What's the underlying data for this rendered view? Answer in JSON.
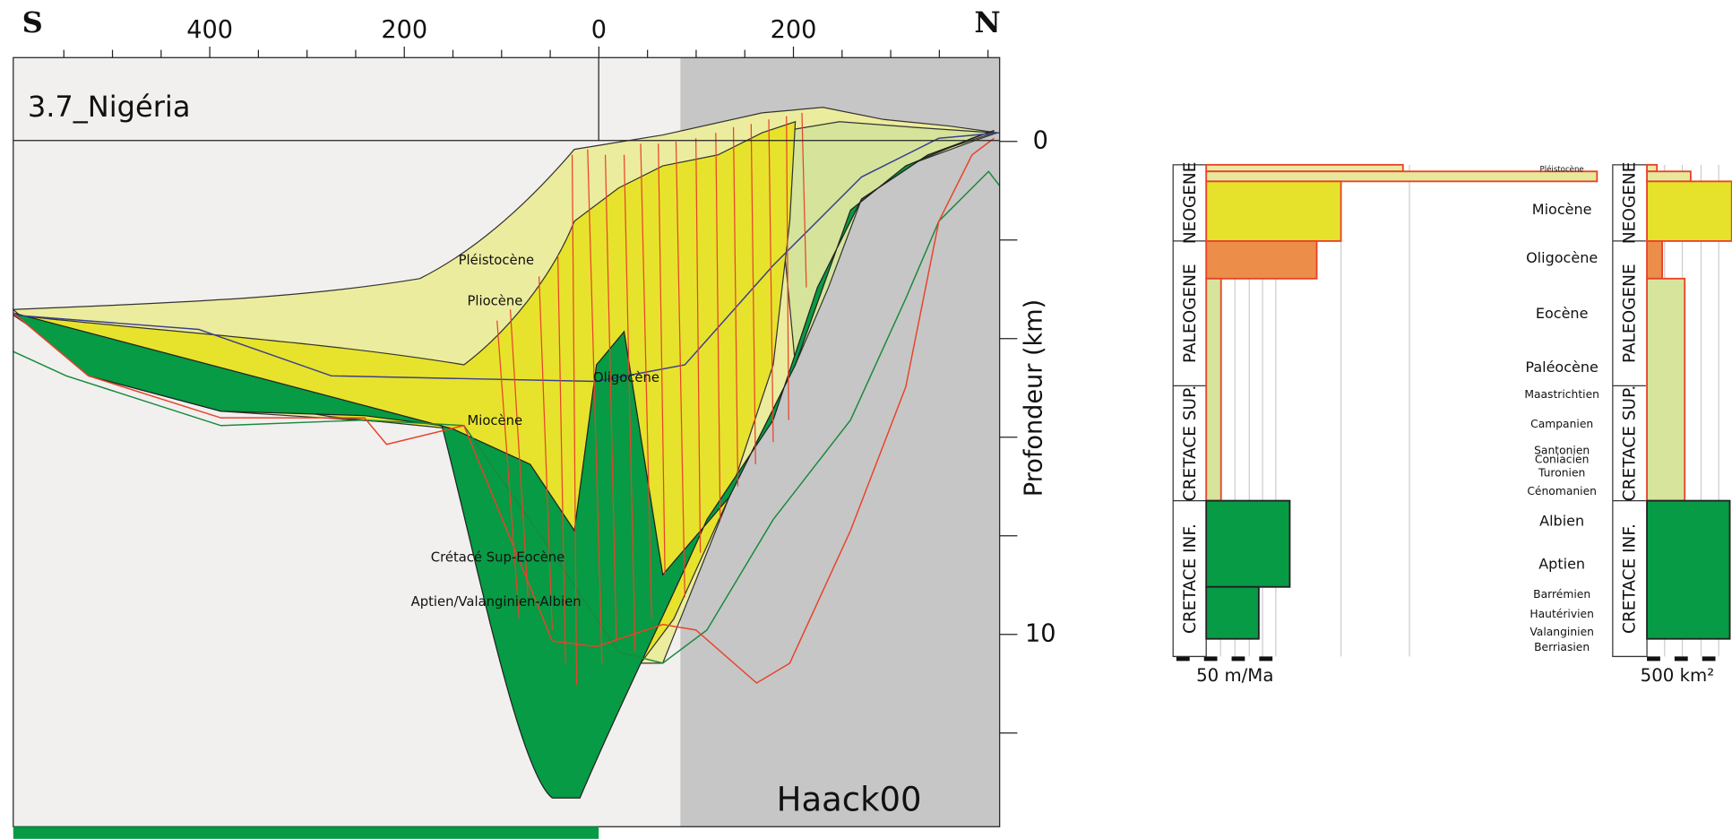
{
  "section": {
    "south": "S",
    "north": "N",
    "title": "3.7_Nigéria",
    "source": "Haack00",
    "y_label": "Profondeur (km)",
    "xlim": [
      -602,
      412
    ],
    "xticks": [
      {
        "value": -400,
        "label": "400"
      },
      {
        "value": -200,
        "label": "200"
      },
      0,
      200
    ],
    "x_minor_ticks": [
      -550,
      -500,
      -450,
      -350,
      -300,
      -250,
      -150,
      -100,
      -50,
      50,
      100,
      150,
      250,
      300,
      350,
      400
    ],
    "ylim": [
      -1.7,
      13.9
    ],
    "yticks": [
      0,
      10
    ],
    "y_minor_ticks": [
      2,
      4,
      6,
      8,
      12
    ],
    "labels": [
      "Pléistocène",
      "Pliocène",
      "Oligocène",
      "Miocène",
      "Crétacé Sup-Eocène",
      "Aptien/Valanginien-Albien"
    ]
  },
  "columns": {
    "periods": [
      "NEOGENE",
      "PALEOGENE",
      "CRETACE SUP.",
      "CRETACE INF."
    ],
    "stages": [
      "Pléistocène",
      "Miocène",
      "Oligocène",
      "Eocène",
      "Paléocène",
      "Maastrichtien",
      "Campanien",
      "Santonien",
      "Coniacien",
      "Turonien",
      "Cénomanien",
      "Albien",
      "Aptien",
      "Barrémien",
      "Hautérivien",
      "Valanginien",
      "Berriasien"
    ],
    "colors": [
      "#eaeaa2",
      "#e8e89c",
      "#e6e22c",
      "#ec8e4a",
      "#d6e49c",
      "#069b44",
      "#069b44"
    ],
    "rate": {
      "scale_label": "50 m/Ma",
      "values": [
        146,
        290,
        100,
        82,
        11,
        62,
        39
      ]
    },
    "area": {
      "scale_label": "500 km²",
      "values": [
        75,
        330,
        640,
        115,
        285,
        625,
        625
      ]
    }
  }
}
